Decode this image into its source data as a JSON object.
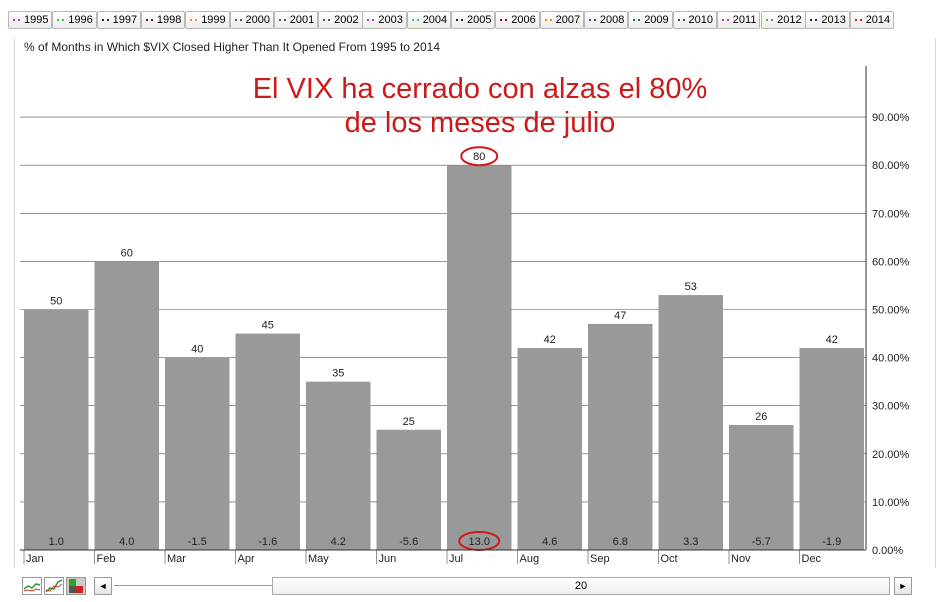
{
  "legend": {
    "items": [
      {
        "label": "1995",
        "color": "#cc33cc"
      },
      {
        "label": "1996",
        "color": "#33cc33"
      },
      {
        "label": "1997",
        "color": "#222222"
      },
      {
        "label": "1998",
        "color": "#880044"
      },
      {
        "label": "1999",
        "color": "#ff8833"
      },
      {
        "label": "2000",
        "color": "#883399"
      },
      {
        "label": "2001",
        "color": "#336666"
      },
      {
        "label": "2002",
        "color": "#555555"
      },
      {
        "label": "2003",
        "color": "#cc33cc"
      },
      {
        "label": "2004",
        "color": "#33cc33"
      },
      {
        "label": "2005",
        "color": "#222244"
      },
      {
        "label": "2006",
        "color": "#aa0033"
      },
      {
        "label": "2007",
        "color": "#ff8800"
      },
      {
        "label": "2008",
        "color": "#772299"
      },
      {
        "label": "2009",
        "color": "#226677"
      },
      {
        "label": "2010",
        "color": "#444444"
      },
      {
        "label": "2011",
        "color": "#cc33cc"
      },
      {
        "label": "2012",
        "color": "#33bb33"
      },
      {
        "label": "2013",
        "color": "#222288"
      },
      {
        "label": "2014",
        "color": "#dd2222"
      }
    ]
  },
  "subtitle": "% of Months in Which $VIX Closed Higher Than It Opened From 1995 to 2014",
  "annotation": {
    "line1": "El VIX ha cerrado con alzas el 80%",
    "line2": "de los meses de julio",
    "color": "#cc1a1a"
  },
  "chart_data": {
    "type": "bar",
    "categories": [
      "Jan",
      "Feb",
      "Mar",
      "Apr",
      "May",
      "Jun",
      "Jul",
      "Aug",
      "Sep",
      "Oct",
      "Nov",
      "Dec"
    ],
    "values": [
      50,
      60,
      40,
      45,
      35,
      25,
      80,
      42,
      47,
      53,
      26,
      42
    ],
    "value_labels": [
      "50",
      "60",
      "40",
      "45",
      "35",
      "25",
      "80",
      "42",
      "47",
      "53",
      "26",
      "42"
    ],
    "bottom_labels": [
      "1.0",
      "4.0",
      "-1.5",
      "-1.6",
      "4.2",
      "-5.6",
      "13.0",
      "4.6",
      "6.8",
      "3.3",
      "-5.7",
      "-1.9"
    ],
    "y_ticks": [
      "0.00%",
      "10.00%",
      "20.00%",
      "30.00%",
      "40.00%",
      "50.00%",
      "60.00%",
      "70.00%",
      "80.00%",
      "90.00%"
    ],
    "ylim": [
      0,
      100
    ],
    "bar_color": "#999999",
    "highlight_category": "Jul",
    "highlight_color": "#cc1a1a",
    "grid": true,
    "y_axis_side": "right"
  },
  "scrollbar": {
    "value": "20",
    "left_arrow": "◄",
    "right_arrow": "►"
  },
  "tools": [
    "line-chart-icon",
    "multi-line-chart-icon",
    "color-swatch-icon"
  ]
}
